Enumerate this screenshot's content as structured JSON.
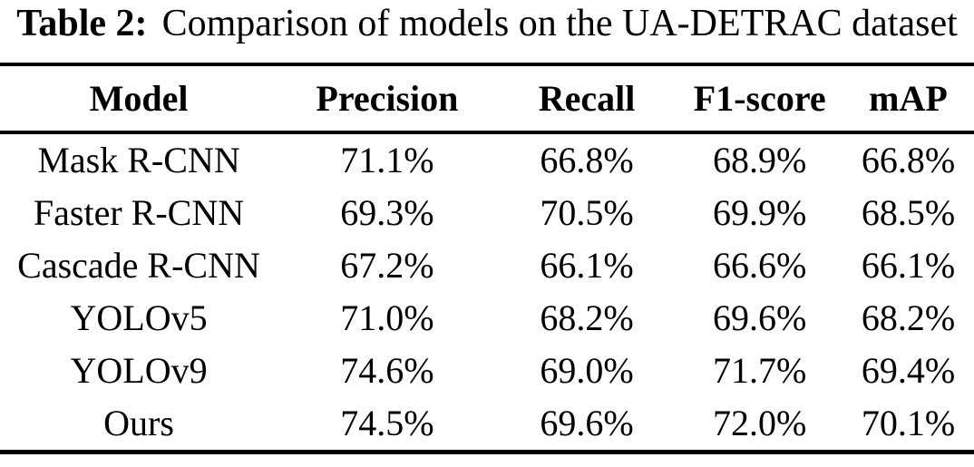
{
  "caption": {
    "label": "Table 2:",
    "text": "Comparison of models on the UA-DETRAC dataset"
  },
  "table": {
    "columns": [
      "Model",
      "Precision",
      "Recall",
      "F1-score",
      "mAP"
    ],
    "rows": [
      [
        "Mask R-CNN",
        "71.1%",
        "66.8%",
        "68.9%",
        "66.8%"
      ],
      [
        "Faster R-CNN",
        "69.3%",
        "70.5%",
        "69.9%",
        "68.5%"
      ],
      [
        "Cascade R-CNN",
        "67.2%",
        "66.1%",
        "66.6%",
        "66.1%"
      ],
      [
        "YOLOv5",
        "71.0%",
        "68.2%",
        "69.6%",
        "68.2%"
      ],
      [
        "YOLOv9",
        "74.6%",
        "69.0%",
        "71.7%",
        "69.4%"
      ],
      [
        "Ours",
        "74.5%",
        "69.6%",
        "72.0%",
        "70.1%"
      ]
    ]
  },
  "colors": {
    "text": "#000000",
    "background": "#ffffff",
    "rule": "#000000"
  }
}
